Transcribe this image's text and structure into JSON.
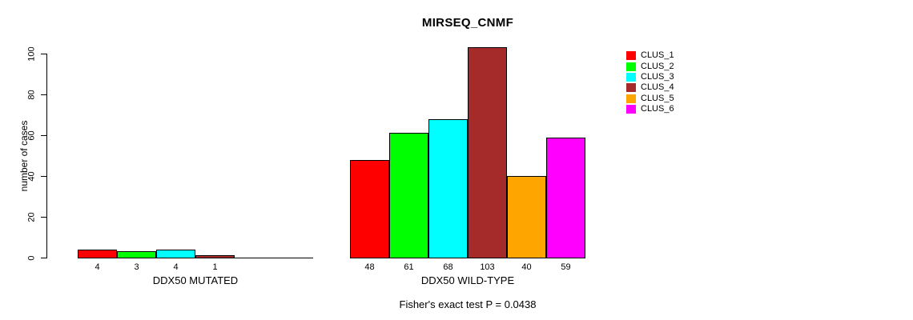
{
  "title": "MIRSEQ_CNMF",
  "footer": "Fisher's exact test P = 0.0438",
  "chart_data": {
    "type": "bar",
    "title": "MIRSEQ_CNMF",
    "xlabel": "",
    "ylabel": "number of cases",
    "ylim": [
      0,
      100
    ],
    "yticks": [
      "0",
      "20",
      "40",
      "60",
      "80",
      "100"
    ],
    "grid": false,
    "legend_position": "right-outside",
    "annotation": "Fisher's exact test P = 0.0438",
    "series": [
      {
        "name": "CLUS_1",
        "color": "#FF0000"
      },
      {
        "name": "CLUS_2",
        "color": "#00FF00"
      },
      {
        "name": "CLUS_3",
        "color": "#00FFFF"
      },
      {
        "name": "CLUS_4",
        "color": "#A52A2A"
      },
      {
        "name": "CLUS_5",
        "color": "#FFA500"
      },
      {
        "name": "CLUS_6",
        "color": "#FF00FF"
      }
    ],
    "groups": [
      {
        "label": "DDX50 MUTATED",
        "values": [
          4,
          3,
          4,
          1,
          null,
          null
        ],
        "bar_labels": [
          "4",
          "3",
          "4",
          "1",
          null,
          null
        ]
      },
      {
        "label": "DDX50 WILD-TYPE",
        "values": [
          48,
          61,
          68,
          103,
          40,
          59
        ],
        "bar_labels": [
          "48",
          "61",
          "68",
          "103",
          "40",
          "59"
        ]
      }
    ]
  }
}
